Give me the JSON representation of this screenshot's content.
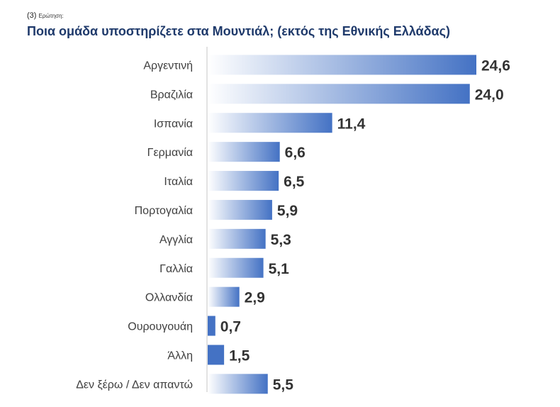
{
  "header": {
    "question_number": "(3)",
    "question_tag": "Ερώτηση:",
    "question_text": "Ποια ομάδα υποστηρίζετε στα Μουντιάλ; (εκτός της Εθνικής Ελλάδας)"
  },
  "chart_data": {
    "type": "bar",
    "orientation": "horizontal",
    "categories": [
      "Αργεντινή",
      "Βραζιλία",
      "Ισπανία",
      "Γερμανία",
      "Ιταλία",
      "Πορτογαλία",
      "Αγγλία",
      "Γαλλία",
      "Ολλανδία",
      "Ουρουγουάη",
      "Άλλη",
      "Δεν ξέρω / Δεν απαντώ"
    ],
    "values": [
      24.6,
      24.0,
      11.4,
      6.6,
      6.5,
      5.9,
      5.3,
      5.1,
      2.9,
      0.7,
      1.5,
      5.5
    ],
    "value_labels": [
      "24,6",
      "24,0",
      "11,4",
      "6,6",
      "6,5",
      "5,9",
      "5,3",
      "5,1",
      "2,9",
      "0,7",
      "1,5",
      "5,5"
    ],
    "xlim": [
      0,
      25
    ],
    "grid": false,
    "legend": "none",
    "bar_gradient_start": "#ffffff",
    "bar_color": "#4472c4"
  }
}
